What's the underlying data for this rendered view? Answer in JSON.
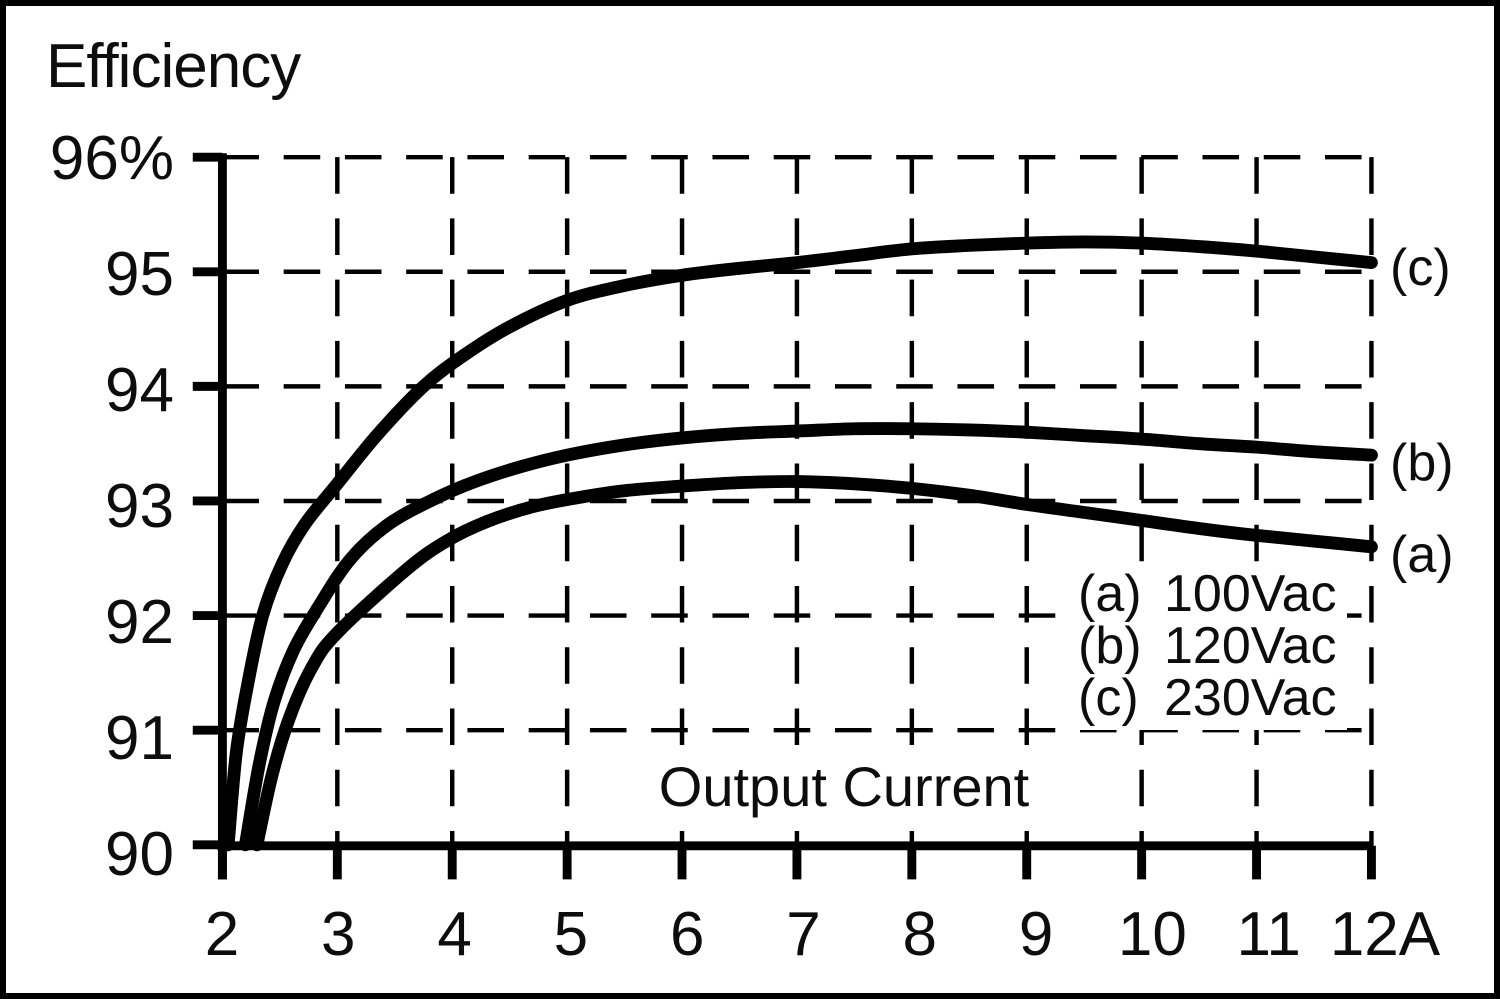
{
  "chart_data": {
    "type": "line",
    "title": "Efficiency",
    "xlabel": "Output Current",
    "ylabel": "Efficiency",
    "x_unit": "A",
    "y_unit": "%",
    "xlim": [
      2,
      12
    ],
    "ylim": [
      90,
      96
    ],
    "grid": "dashed",
    "x_ticks": [
      2,
      3,
      4,
      5,
      6,
      7,
      8,
      9,
      10,
      11,
      12
    ],
    "x_tick_labels": [
      "2",
      "3",
      "4",
      "5",
      "6",
      "7",
      "8",
      "9",
      "10",
      "11",
      "12A"
    ],
    "y_ticks": [
      96,
      95,
      94,
      93,
      92,
      91,
      90
    ],
    "y_tick_labels": [
      "96%",
      "95",
      "94",
      "93",
      "92",
      "91",
      "90"
    ],
    "colors": {
      "line": "#000000",
      "background": "#ffffff",
      "text": "#0d0d0d"
    },
    "legend": {
      "position": "inside-right",
      "entries": [
        {
          "key": "(a)",
          "label": "100Vac"
        },
        {
          "key": "(b)",
          "label": "120Vac"
        },
        {
          "key": "(c)",
          "label": "230Vac"
        }
      ]
    },
    "series": [
      {
        "name": "(a) 100Vac",
        "curve_label": "(a)",
        "points": [
          [
            2.3,
            90
          ],
          [
            2.43,
            90.6
          ],
          [
            2.58,
            91.1
          ],
          [
            2.78,
            91.55
          ],
          [
            3.0,
            91.85
          ],
          [
            3.6,
            92.4
          ],
          [
            3.95,
            92.65
          ],
          [
            4.3,
            92.82
          ],
          [
            4.7,
            92.95
          ],
          [
            5.1,
            93.03
          ],
          [
            5.5,
            93.09
          ],
          [
            6.0,
            93.13
          ],
          [
            6.5,
            93.16
          ],
          [
            7.0,
            93.17
          ],
          [
            7.5,
            93.15
          ],
          [
            8.0,
            93.11
          ],
          [
            8.5,
            93.05
          ],
          [
            9.0,
            92.97
          ],
          [
            9.5,
            92.9
          ],
          [
            10.0,
            92.83
          ],
          [
            10.5,
            92.76
          ],
          [
            11.0,
            92.7
          ],
          [
            11.5,
            92.65
          ],
          [
            12.0,
            92.6
          ]
        ]
      },
      {
        "name": "(b) 120Vac",
        "curve_label": "(b)",
        "points": [
          [
            2.2,
            90
          ],
          [
            2.32,
            90.7
          ],
          [
            2.45,
            91.25
          ],
          [
            2.62,
            91.7
          ],
          [
            2.85,
            92.1
          ],
          [
            3.12,
            92.5
          ],
          [
            3.45,
            92.8
          ],
          [
            3.85,
            93.02
          ],
          [
            4.2,
            93.17
          ],
          [
            4.6,
            93.3
          ],
          [
            5.0,
            93.4
          ],
          [
            5.5,
            93.49
          ],
          [
            6.0,
            93.55
          ],
          [
            6.5,
            93.59
          ],
          [
            7.0,
            93.61
          ],
          [
            7.5,
            93.63
          ],
          [
            8.0,
            93.63
          ],
          [
            8.5,
            93.62
          ],
          [
            9.0,
            93.6
          ],
          [
            9.5,
            93.57
          ],
          [
            10.0,
            93.54
          ],
          [
            10.5,
            93.5
          ],
          [
            11.0,
            93.47
          ],
          [
            11.5,
            93.43
          ],
          [
            12.0,
            93.4
          ]
        ]
      },
      {
        "name": "(c) 230Vac",
        "curve_label": "(c)",
        "points": [
          [
            2.05,
            90
          ],
          [
            2.12,
            90.8
          ],
          [
            2.22,
            91.4
          ],
          [
            2.35,
            92.0
          ],
          [
            2.52,
            92.45
          ],
          [
            2.72,
            92.8
          ],
          [
            3.0,
            93.15
          ],
          [
            3.35,
            93.58
          ],
          [
            3.75,
            94.0
          ],
          [
            4.1,
            94.27
          ],
          [
            4.5,
            94.52
          ],
          [
            5.0,
            94.75
          ],
          [
            5.5,
            94.88
          ],
          [
            6.0,
            94.97
          ],
          [
            6.5,
            95.03
          ],
          [
            7.0,
            95.08
          ],
          [
            7.5,
            95.14
          ],
          [
            8.0,
            95.2
          ],
          [
            8.5,
            95.23
          ],
          [
            9.0,
            95.25
          ],
          [
            9.5,
            95.26
          ],
          [
            10.0,
            95.25
          ],
          [
            10.5,
            95.22
          ],
          [
            11.0,
            95.18
          ],
          [
            11.5,
            95.13
          ],
          [
            12.0,
            95.08
          ]
        ]
      }
    ]
  }
}
